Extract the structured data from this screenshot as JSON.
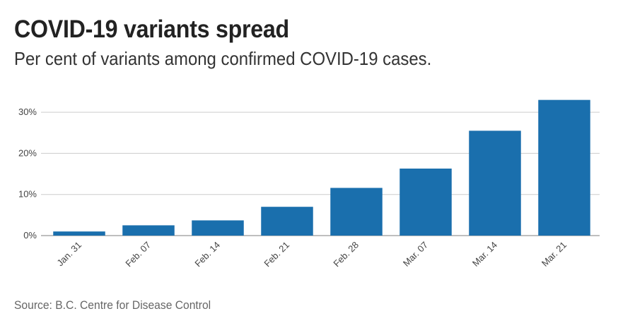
{
  "header": {
    "title": "COVID-19 variants spread",
    "subtitle": "Per cent of variants among confirmed COVID-19 cases."
  },
  "footer": {
    "source": "Source: B.C. Centre for Disease Control"
  },
  "colors": {
    "bar": "#1a6fad",
    "grid": "#cccccc",
    "axis": "#999999"
  },
  "chart_data": {
    "type": "bar",
    "title": "COVID-19 variants spread",
    "subtitle": "Per cent of variants among confirmed COVID-19 cases.",
    "xlabel": "",
    "ylabel": "",
    "categories": [
      "Jan. 31",
      "Feb. 07",
      "Feb. 14",
      "Feb. 21",
      "Feb. 28",
      "Mar. 07",
      "Mar. 14",
      "Mar. 21"
    ],
    "values": [
      1.0,
      2.5,
      3.7,
      7.0,
      11.6,
      16.3,
      25.5,
      33.0
    ],
    "ylim": [
      0,
      35
    ],
    "yticks": [
      0,
      10,
      20,
      30
    ],
    "ytick_labels": [
      "0%",
      "10%",
      "20%",
      "30%"
    ],
    "grid": true
  }
}
